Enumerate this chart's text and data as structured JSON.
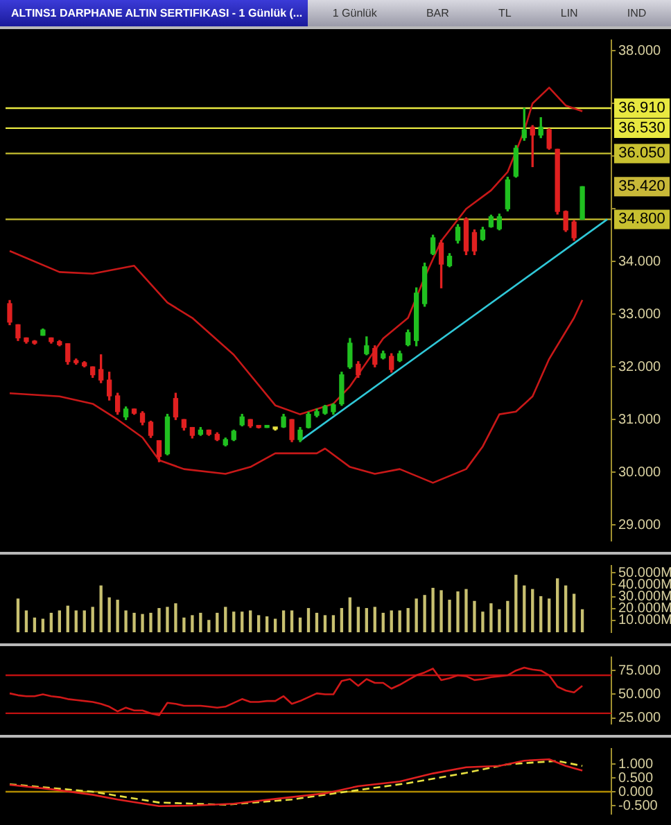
{
  "chart_data": [
    {
      "type": "candlestick",
      "title": "ALTINS1 DARPHANE ALTIN SERTIFIKASI - 1 Günlük (...",
      "annotations": [
        "1 Günlük",
        "BAR",
        "TL",
        "LIN",
        "IND",
        {
          "text": "35.420",
          "y": 35.42
        }
      ],
      "categories": [
        null,
        null,
        null,
        null,
        null,
        null,
        null,
        null,
        null,
        null,
        null,
        null,
        null,
        null,
        null,
        null,
        null,
        null,
        null,
        null,
        null,
        null,
        null,
        null,
        null,
        null,
        null,
        null,
        null,
        null,
        null,
        null,
        null,
        null,
        null,
        null,
        null,
        null,
        null,
        null,
        null,
        null,
        null,
        null,
        null,
        null,
        null,
        null,
        null,
        null,
        null,
        null,
        null,
        null,
        null,
        null,
        null,
        null,
        null,
        null,
        null,
        null,
        null,
        null,
        null,
        null,
        null,
        null,
        null,
        null,
        null,
        null,
        null
      ],
      "series": [
        {
          "type": "candlestick",
          "ohlc": [
            [
              33.2,
              33.26,
              32.8,
              32.85
            ],
            [
              32.8,
              32.8,
              32.5,
              32.55
            ],
            [
              32.55,
              32.55,
              32.45,
              32.48
            ],
            [
              32.48,
              32.5,
              32.43,
              32.45
            ],
            [
              32.6,
              32.72,
              32.6,
              32.7
            ],
            [
              32.55,
              32.55,
              32.45,
              32.48
            ],
            [
              32.48,
              32.5,
              32.4,
              32.42
            ],
            [
              32.44,
              32.44,
              32.05,
              32.1
            ],
            [
              32.12,
              32.15,
              32.05,
              32.08
            ],
            [
              32.08,
              32.1,
              32.0,
              32.02
            ],
            [
              32.0,
              32.0,
              31.8,
              31.85
            ],
            [
              31.95,
              32.23,
              31.7,
              31.75
            ],
            [
              31.75,
              31.9,
              31.37,
              31.45
            ],
            [
              31.45,
              31.5,
              31.1,
              31.15
            ],
            [
              31.05,
              31.24,
              31.0,
              31.2
            ],
            [
              31.2,
              31.2,
              31.1,
              31.12
            ],
            [
              31.12,
              31.15,
              30.9,
              30.95
            ],
            [
              30.95,
              30.97,
              30.66,
              30.7
            ],
            [
              30.6,
              30.6,
              30.2,
              30.3
            ],
            [
              30.35,
              31.1,
              30.33,
              31.05
            ],
            [
              31.4,
              31.5,
              31.0,
              31.05
            ],
            [
              31.0,
              31.0,
              30.8,
              30.85
            ],
            [
              30.85,
              30.85,
              30.65,
              30.7
            ],
            [
              30.72,
              30.85,
              30.7,
              30.8
            ],
            [
              30.8,
              30.8,
              30.7,
              30.72
            ],
            [
              30.72,
              30.75,
              30.6,
              30.62
            ],
            [
              30.52,
              30.65,
              30.5,
              30.62
            ],
            [
              30.62,
              30.8,
              30.6,
              30.78
            ],
            [
              30.9,
              31.1,
              30.88,
              31.05
            ],
            [
              31.0,
              31.0,
              30.85,
              30.88
            ],
            [
              30.86,
              30.86,
              30.84,
              30.85
            ],
            [
              30.85,
              30.88,
              30.85,
              30.87
            ],
            [
              30.85,
              30.85,
              30.8,
              30.82
            ],
            [
              30.86,
              31.1,
              30.85,
              31.05
            ],
            [
              31.0,
              31.0,
              30.58,
              30.62
            ],
            [
              30.62,
              30.85,
              30.58,
              30.8
            ],
            [
              30.85,
              31.14,
              30.84,
              31.1
            ],
            [
              31.08,
              31.2,
              31.05,
              31.15
            ],
            [
              31.12,
              31.27,
              31.1,
              31.25
            ],
            [
              31.15,
              31.3,
              31.1,
              31.28
            ],
            [
              31.3,
              31.9,
              31.27,
              31.85
            ],
            [
              32.0,
              32.54,
              31.97,
              32.45
            ],
            [
              32.05,
              32.1,
              31.8,
              31.85
            ],
            [
              32.25,
              32.57,
              32.23,
              32.4
            ],
            [
              32.35,
              32.4,
              32.0,
              32.05
            ],
            [
              32.17,
              32.3,
              32.15,
              32.25
            ],
            [
              32.2,
              32.25,
              31.9,
              31.95
            ],
            [
              32.12,
              32.3,
              32.1,
              32.25
            ],
            [
              32.42,
              32.7,
              32.4,
              32.65
            ],
            [
              32.5,
              33.5,
              32.4,
              33.4
            ],
            [
              33.2,
              33.97,
              33.15,
              33.9
            ],
            [
              34.15,
              34.5,
              34.13,
              34.45
            ],
            [
              34.35,
              34.4,
              33.5,
              33.95
            ],
            [
              33.92,
              34.15,
              33.9,
              34.1
            ],
            [
              34.4,
              34.7,
              34.35,
              34.65
            ],
            [
              34.8,
              34.83,
              34.13,
              34.2
            ],
            [
              34.55,
              34.6,
              34.13,
              34.2
            ],
            [
              34.42,
              34.65,
              34.4,
              34.6
            ],
            [
              34.66,
              34.88,
              34.65,
              34.85
            ],
            [
              34.62,
              34.9,
              34.6,
              34.85
            ],
            [
              35.0,
              35.6,
              34.96,
              35.55
            ],
            [
              35.62,
              36.2,
              35.6,
              36.15
            ],
            [
              36.35,
              36.91,
              36.3,
              36.5
            ],
            [
              36.55,
              36.58,
              35.8,
              36.4
            ],
            [
              36.4,
              36.73,
              36.35,
              36.55
            ],
            [
              36.5,
              36.52,
              36.13,
              36.15
            ],
            [
              36.13,
              36.13,
              34.9,
              34.95
            ],
            [
              34.95,
              34.96,
              34.57,
              34.6
            ],
            [
              34.75,
              34.78,
              34.4,
              34.45
            ],
            [
              34.8,
              35.42,
              34.8,
              35.42
            ],
            null,
            null,
            null
          ],
          "colors": [
            "#e02020",
            "#e02020",
            "#e02020",
            "#e02020",
            "#20c020",
            "#e02020",
            "#e02020",
            "#e02020",
            "#e02020",
            "#e02020",
            "#e02020",
            "#e02020",
            "#e02020",
            "#e02020",
            "#20c020",
            "#e02020",
            "#e02020",
            "#e02020",
            "#e02020",
            "#20c020",
            "#e02020",
            "#e02020",
            "#e02020",
            "#20c020",
            "#e02020",
            "#e02020",
            "#20c020",
            "#20c020",
            "#20c020",
            "#e02020",
            "#e02020",
            "#20c020",
            "#e8e040",
            "#20c020",
            "#e02020",
            "#20c020",
            "#20c020",
            "#20c020",
            "#20c020",
            "#20c020",
            "#20c020",
            "#20c020",
            "#e02020",
            "#20c020",
            "#e02020",
            "#20c020",
            "#e02020",
            "#20c020",
            "#20c020",
            "#20c020",
            "#20c020",
            "#20c020",
            "#e02020",
            "#20c020",
            "#20c020",
            "#e02020",
            "#e02020",
            "#20c020",
            "#20c020",
            "#20c020",
            "#20c020",
            "#20c020",
            "#20c020",
            "#e02020",
            "#20c020",
            "#e02020",
            "#e02020",
            "#e02020",
            "#e02020",
            "#20c020",
            null,
            null,
            null
          ]
        },
        {
          "type": "line",
          "color": "#c81818",
          "values": [
            34.2,
            null,
            null,
            null,
            null,
            null,
            33.8,
            null,
            null,
            null,
            33.77,
            null,
            null,
            null,
            null,
            33.92,
            null,
            null,
            null,
            33.22,
            null,
            null,
            32.93,
            null,
            null,
            null,
            null,
            32.23,
            null,
            null,
            null,
            null,
            31.27,
            null,
            null,
            31.1,
            null,
            null,
            null,
            31.3,
            null,
            31.63,
            null,
            null,
            null,
            32.54,
            null,
            null,
            32.93,
            null,
            33.7,
            null,
            34.39,
            null,
            null,
            35.0,
            null,
            null,
            35.35,
            null,
            35.7,
            null,
            36.48,
            37.0,
            null,
            37.3,
            null,
            36.96,
            null,
            36.85,
            null,
            null,
            null
          ]
        },
        {
          "type": "line",
          "color": "#c81818",
          "values": [
            31.5,
            null,
            null,
            null,
            null,
            null,
            31.44,
            null,
            null,
            null,
            31.3,
            null,
            null,
            31.0,
            null,
            null,
            30.66,
            null,
            30.23,
            null,
            null,
            30.06,
            null,
            null,
            null,
            null,
            29.97,
            null,
            null,
            30.1,
            null,
            null,
            30.36,
            null,
            null,
            null,
            null,
            30.36,
            30.45,
            null,
            null,
            30.1,
            null,
            null,
            29.97,
            null,
            null,
            30.06,
            null,
            null,
            null,
            29.8,
            null,
            null,
            null,
            30.06,
            null,
            30.49,
            null,
            31.1,
            null,
            31.15,
            null,
            31.44,
            null,
            32.15,
            null,
            null,
            32.93,
            33.27,
            null,
            null,
            null
          ]
        },
        {
          "type": "line",
          "color": "#30c8d8",
          "values": [
            null,
            null,
            null,
            null,
            null,
            null,
            null,
            null,
            null,
            null,
            null,
            null,
            null,
            null,
            null,
            null,
            null,
            null,
            null,
            null,
            null,
            null,
            null,
            null,
            null,
            null,
            null,
            null,
            null,
            null,
            null,
            null,
            null,
            null,
            null,
            30.6,
            null,
            null,
            null,
            null,
            null,
            null,
            null,
            null,
            null,
            null,
            null,
            null,
            null,
            null,
            null,
            null,
            null,
            null,
            null,
            null,
            null,
            null,
            null,
            null,
            null,
            null,
            null,
            null,
            null,
            null,
            null,
            null,
            null,
            null,
            null,
            null,
            34.8
          ]
        }
      ],
      "ylim": [
        28.7,
        38.2
      ],
      "yticks": [
        {
          "value": 29,
          "label": "29.000"
        },
        {
          "value": 30,
          "label": "30.000"
        },
        {
          "value": 31,
          "label": "31.000"
        },
        {
          "value": 32,
          "label": "32.000"
        },
        {
          "value": 33,
          "label": "33.000"
        },
        {
          "value": 34,
          "label": "34.000"
        },
        {
          "value": 35,
          "label": null
        },
        {
          "value": 36,
          "label": null
        },
        {
          "value": 37,
          "label": null
        },
        {
          "value": 38,
          "label": "38.000"
        }
      ],
      "ref_lines": [
        {
          "axis": "y",
          "value": 36.91,
          "label": "36.910",
          "color": "#e8e840"
        },
        {
          "axis": "y",
          "value": 36.53,
          "label": "36.530",
          "color": "#e8e840"
        },
        {
          "axis": "y",
          "value": 36.05,
          "label": "36.050",
          "color": "#c8c030"
        },
        {
          "axis": "y",
          "value": 34.8,
          "label": "34.800",
          "color": "#c8c030"
        }
      ],
      "tick_labels": "y",
      "marker": "none"
    },
    {
      "type": "bar",
      "color": "#c8c070",
      "categories": [
        null,
        null,
        null,
        null,
        null,
        null,
        null,
        null,
        null,
        null,
        null,
        null,
        null,
        null,
        null,
        null,
        null,
        null,
        null,
        null,
        null,
        null,
        null,
        null,
        null,
        null,
        null,
        null,
        null,
        null,
        null,
        null,
        null,
        null,
        null,
        null,
        null,
        null,
        null,
        null,
        null,
        null,
        null,
        null,
        null,
        null,
        null,
        null,
        null,
        null,
        null,
        null,
        null,
        null,
        null,
        null,
        null,
        null,
        null,
        null,
        null,
        null,
        null,
        null,
        null,
        null,
        null,
        null,
        null,
        null,
        null,
        null,
        null
      ],
      "values": [
        null,
        28,
        18,
        12,
        11,
        16,
        18,
        22,
        18,
        18,
        21,
        39,
        29,
        27,
        18,
        16,
        15,
        16,
        20,
        21,
        24,
        12,
        14,
        16,
        10,
        16,
        21,
        17,
        17,
        18,
        14,
        13,
        11,
        18,
        18,
        12,
        20,
        16,
        14,
        14,
        20,
        29,
        21,
        20,
        21,
        16,
        18,
        18,
        20,
        28,
        31,
        37,
        35,
        27,
        34,
        36,
        26,
        17,
        24,
        19,
        26,
        48,
        39,
        36,
        30,
        28,
        45,
        39,
        32,
        19,
        null,
        null,
        null
      ],
      "ylim": [
        0,
        56
      ],
      "yticks": [
        {
          "value": 10,
          "label": "10.000M"
        },
        {
          "value": 20,
          "label": "20.000M"
        },
        {
          "value": 30,
          "label": "30.000M"
        },
        {
          "value": 40,
          "label": "40.000M"
        },
        {
          "value": 50,
          "label": "50.000M"
        }
      ],
      "tick_labels": "y"
    },
    {
      "type": "line",
      "color": "#d01818",
      "categories": [
        null,
        null,
        null,
        null,
        null,
        null,
        null,
        null,
        null,
        null,
        null,
        null,
        null,
        null,
        null,
        null,
        null,
        null,
        null,
        null,
        null,
        null,
        null,
        null,
        null,
        null,
        null,
        null,
        null,
        null,
        null,
        null,
        null,
        null,
        null,
        null,
        null,
        null,
        null,
        null,
        null,
        null,
        null,
        null,
        null,
        null,
        null,
        null,
        null,
        null,
        null,
        null,
        null,
        null,
        null,
        null,
        null,
        null,
        null,
        null,
        null,
        null,
        null,
        null,
        null,
        null,
        null,
        null,
        null,
        null,
        null,
        null,
        null
      ],
      "values": [
        51,
        49,
        48,
        48,
        50,
        48,
        47,
        45,
        44,
        43,
        42,
        40,
        37,
        32,
        36,
        33,
        33,
        30,
        28,
        41,
        40,
        38,
        38,
        38,
        37,
        36,
        37,
        41,
        45,
        42,
        42,
        43,
        43,
        48,
        40,
        43,
        47,
        51,
        50,
        50,
        64,
        66,
        59,
        66,
        62,
        62,
        56,
        60,
        65,
        70,
        73,
        77,
        65,
        67,
        70,
        69,
        65,
        66,
        68,
        69,
        70,
        75,
        78,
        76,
        75,
        70,
        58,
        54,
        52,
        59,
        null,
        null,
        null
      ],
      "ylim": [
        19,
        89
      ],
      "yticks": [
        {
          "value": 25,
          "label": "25.000"
        },
        {
          "value": 50,
          "label": "50.000"
        },
        {
          "value": 75,
          "label": "75.000"
        }
      ],
      "ref_lines": [
        {
          "axis": "y",
          "value": 70,
          "color": "#c01010"
        },
        {
          "axis": "y",
          "value": 30,
          "color": "#c01010"
        }
      ],
      "tick_labels": "y",
      "marker": "none"
    },
    {
      "type": "line",
      "categories": [
        null,
        null,
        null,
        null,
        null,
        null,
        null,
        null,
        null,
        null,
        null,
        null,
        null,
        null,
        null,
        null,
        null,
        null,
        null,
        null,
        null,
        null,
        null,
        null,
        null,
        null,
        null,
        null,
        null,
        null,
        null,
        null,
        null,
        null,
        null,
        null,
        null,
        null,
        null,
        null,
        null,
        null,
        null,
        null,
        null,
        null,
        null,
        null,
        null,
        null,
        null,
        null,
        null,
        null,
        null,
        null,
        null,
        null,
        null,
        null,
        null,
        null,
        null,
        null,
        null,
        null,
        null,
        null,
        null,
        null,
        null,
        null,
        null
      ],
      "series": [
        {
          "color": "#e02020",
          "values": [
            0.25,
            null,
            null,
            null,
            null,
            0.09,
            null,
            null,
            null,
            null,
            -0.11,
            null,
            null,
            -0.28,
            null,
            null,
            null,
            null,
            -0.52,
            null,
            null,
            null,
            -0.5,
            null,
            null,
            null,
            null,
            -0.43,
            null,
            null,
            null,
            null,
            -0.26,
            null,
            null,
            null,
            null,
            null,
            -0.06,
            null,
            null,
            null,
            0.2,
            null,
            null,
            null,
            null,
            0.37,
            null,
            null,
            null,
            0.66,
            null,
            null,
            null,
            0.88,
            null,
            null,
            null,
            0.93,
            null,
            null,
            1.12,
            null,
            null,
            1.17,
            null,
            0.93,
            null,
            0.76,
            null,
            null,
            null
          ]
        },
        {
          "color": "#e8e040",
          "line_style": "dashed",
          "values": [
            0.27,
            null,
            null,
            null,
            null,
            null,
            null,
            null,
            null,
            null,
            0,
            null,
            null,
            null,
            null,
            null,
            null,
            null,
            -0.39,
            null,
            null,
            null,
            null,
            null,
            null,
            null,
            -0.47,
            null,
            null,
            null,
            null,
            null,
            null,
            null,
            -0.28,
            null,
            null,
            null,
            null,
            null,
            null,
            null,
            0.06,
            null,
            null,
            null,
            null,
            null,
            0.31,
            null,
            null,
            null,
            null,
            null,
            null,
            0.68,
            null,
            null,
            null,
            null,
            0.99,
            null,
            null,
            null,
            null,
            null,
            1.11,
            null,
            null,
            0.93,
            null,
            null,
            null
          ]
        }
      ],
      "ylim": [
        -0.8,
        1.55
      ],
      "yticks": [
        {
          "value": -0.5,
          "label": "-0.500"
        },
        {
          "value": 0,
          "label": "0.000"
        },
        {
          "value": 0.5,
          "label": "0.500"
        },
        {
          "value": 1,
          "label": "1.000"
        }
      ],
      "ref_lines": [
        {
          "axis": "y",
          "value": 0,
          "color": "#b08a00"
        }
      ],
      "tick_labels": "y",
      "marker": "none"
    }
  ]
}
